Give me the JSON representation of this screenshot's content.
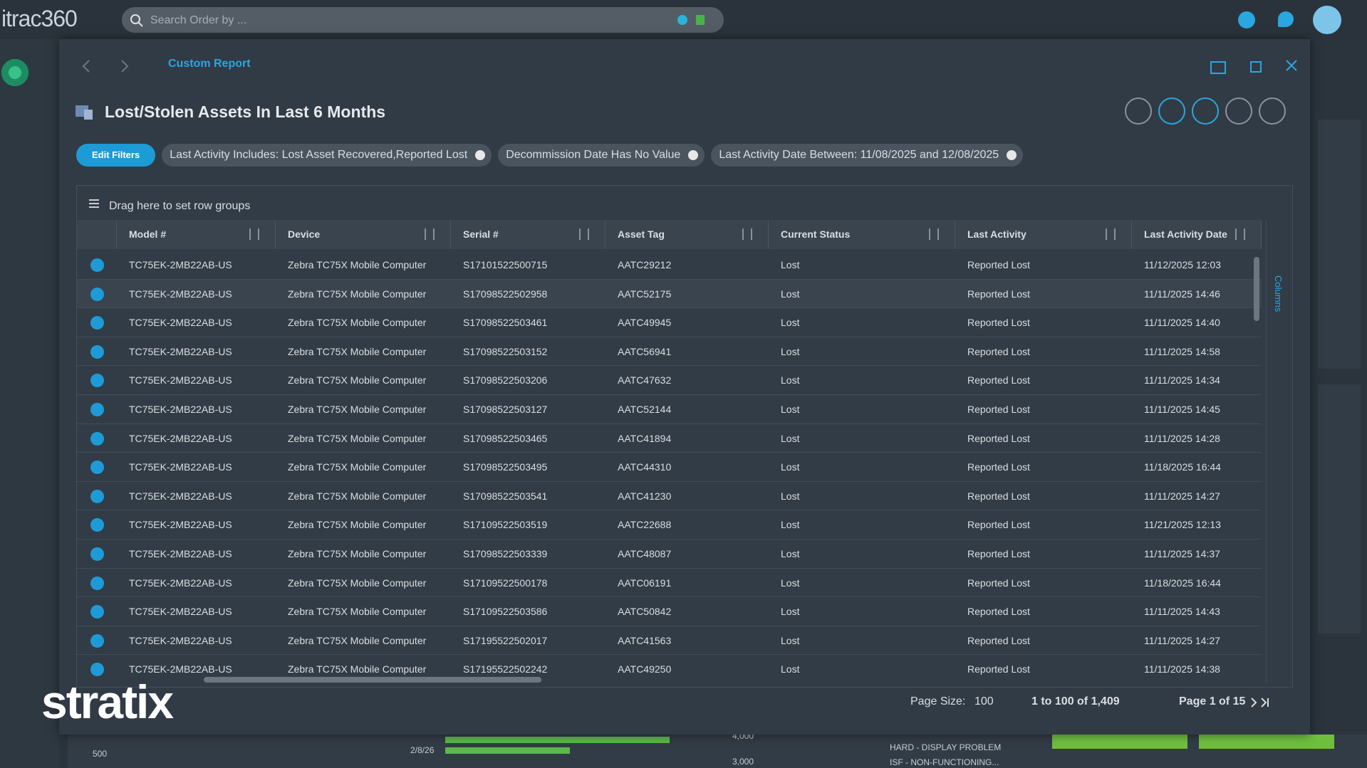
{
  "header": {
    "logo": "itrac360",
    "search_placeholder": "Search Order by ..."
  },
  "report": {
    "breadcrumb": "Custom Report",
    "title": "Lost/Stolen Assets In Last 6 Months",
    "edit_filters": "Edit Filters",
    "filters": [
      "Last Activity Includes: Lost Asset Recovered,Reported Lost",
      "Decommission Date Has No Value",
      "Last Activity Date Between: 11/08/2025 and 12/08/2025"
    ]
  },
  "table": {
    "group_hint": "Drag here to set row groups",
    "side_panel": "Columns",
    "columns": [
      "Model #",
      "Device",
      "Serial #",
      "Asset Tag",
      "Current Status",
      "Last Activity",
      "Last Activity Date"
    ],
    "rows": [
      [
        "TC75EK-2MB22AB-US",
        "Zebra TC75X Mobile Computer",
        "S17101522500715",
        "AATC29212",
        "Lost",
        "Reported Lost",
        "11/12/2025 12:03"
      ],
      [
        "TC75EK-2MB22AB-US",
        "Zebra TC75X Mobile Computer",
        "S17098522502958",
        "AATC52175",
        "Lost",
        "Reported Lost",
        "11/11/2025 14:46"
      ],
      [
        "TC75EK-2MB22AB-US",
        "Zebra TC75X Mobile Computer",
        "S17098522503461",
        "AATC49945",
        "Lost",
        "Reported Lost",
        "11/11/2025 14:40"
      ],
      [
        "TC75EK-2MB22AB-US",
        "Zebra TC75X Mobile Computer",
        "S17098522503152",
        "AATC56941",
        "Lost",
        "Reported Lost",
        "11/11/2025 14:58"
      ],
      [
        "TC75EK-2MB22AB-US",
        "Zebra TC75X Mobile Computer",
        "S17098522503206",
        "AATC47632",
        "Lost",
        "Reported Lost",
        "11/11/2025 14:34"
      ],
      [
        "TC75EK-2MB22AB-US",
        "Zebra TC75X Mobile Computer",
        "S17098522503127",
        "AATC52144",
        "Lost",
        "Reported Lost",
        "11/11/2025 14:45"
      ],
      [
        "TC75EK-2MB22AB-US",
        "Zebra TC75X Mobile Computer",
        "S17098522503465",
        "AATC41894",
        "Lost",
        "Reported Lost",
        "11/11/2025 14:28"
      ],
      [
        "TC75EK-2MB22AB-US",
        "Zebra TC75X Mobile Computer",
        "S17098522503495",
        "AATC44310",
        "Lost",
        "Reported Lost",
        "11/18/2025 16:44"
      ],
      [
        "TC75EK-2MB22AB-US",
        "Zebra TC75X Mobile Computer",
        "S17098522503541",
        "AATC41230",
        "Lost",
        "Reported Lost",
        "11/11/2025 14:27"
      ],
      [
        "TC75EK-2MB22AB-US",
        "Zebra TC75X Mobile Computer",
        "S17109522503519",
        "AATC22688",
        "Lost",
        "Reported Lost",
        "11/21/2025 12:13"
      ],
      [
        "TC75EK-2MB22AB-US",
        "Zebra TC75X Mobile Computer",
        "S17098522503339",
        "AATC48087",
        "Lost",
        "Reported Lost",
        "11/11/2025 14:37"
      ],
      [
        "TC75EK-2MB22AB-US",
        "Zebra TC75X Mobile Computer",
        "S17109522500178",
        "AATC06191",
        "Lost",
        "Reported Lost",
        "11/18/2025 16:44"
      ],
      [
        "TC75EK-2MB22AB-US",
        "Zebra TC75X Mobile Computer",
        "S17109522503586",
        "AATC50842",
        "Lost",
        "Reported Lost",
        "11/11/2025 14:43"
      ],
      [
        "TC75EK-2MB22AB-US",
        "Zebra TC75X Mobile Computer",
        "S17195522502017",
        "AATC41563",
        "Lost",
        "Reported Lost",
        "11/11/2025 14:27"
      ],
      [
        "TC75EK-2MB22AB-US",
        "Zebra TC75X Mobile Computer",
        "S17195522502242",
        "AATC49250",
        "Lost",
        "Reported Lost",
        "11/11/2025 14:38"
      ]
    ]
  },
  "pagination": {
    "page_size_label": "Page Size:",
    "page_size": "100",
    "range": "1 to 100 of 1,409",
    "page": "Page 1 of 15"
  },
  "watermark": "stratix",
  "background": {
    "labels": [
      "500",
      "2/8/26",
      "4,000",
      "3,000",
      "HARD - DISPLAY PROBLEM",
      "ISF - NON-FUNCTIONING..."
    ]
  }
}
